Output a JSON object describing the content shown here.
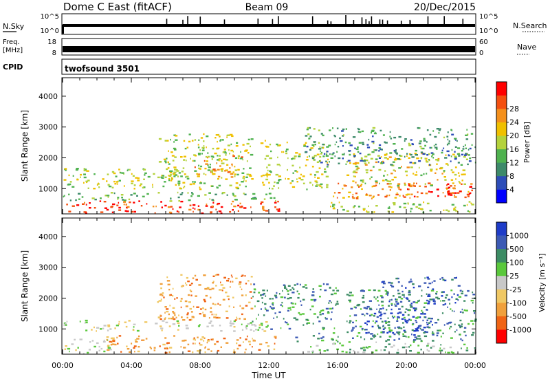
{
  "header": {
    "station": "Dome C East (fitACF)",
    "beam": "Beam 09",
    "date": "20/Dec/2015"
  },
  "summary_panels": {
    "nsky": {
      "label": "N.Sky",
      "left_ticks": [
        "10^5",
        "10^0"
      ],
      "right_ticks": [
        "10^5",
        "10^0"
      ],
      "right_label": "N.Search"
    },
    "freq": {
      "label_top": "Freq.",
      "label_bottom": "[MHz]",
      "left_ticks": [
        "18",
        "8"
      ],
      "right_ticks": [
        "60",
        "0"
      ],
      "right_label": "Nave"
    },
    "cpid": {
      "label": "CPID",
      "program": "twofsound 3501"
    }
  },
  "chart_data": [
    {
      "type": "heatmap",
      "name": "power",
      "xlabel": "",
      "ylabel": "Slant Range [km]",
      "x_ticks": [
        "00:00",
        "04:00",
        "08:00",
        "12:00",
        "16:00",
        "20:00",
        "00:00"
      ],
      "x_range_hours": [
        0,
        24
      ],
      "y_ticks": [
        1000,
        2000,
        3000,
        4000
      ],
      "y_range_km": [
        180,
        4600
      ],
      "colorbar": {
        "label": "Power [dB]",
        "ticks": [
          "4",
          "8",
          "12",
          "16",
          "20",
          "24",
          "28"
        ],
        "range": [
          0,
          32
        ],
        "colors": [
          "#0000ff",
          "#2d4db8",
          "#3d8a6a",
          "#4fb24f",
          "#b4d23c",
          "#f0c000",
          "#f4901c",
          "#f45010",
          "#ff0000"
        ]
      },
      "regions": [
        {
          "t0": 0.0,
          "t1": 12.8,
          "r0": 220,
          "r1": 620,
          "level": 28
        },
        {
          "t0": 0.0,
          "t1": 12.5,
          "r0": 620,
          "r1": 900,
          "level": 12
        },
        {
          "t0": 0.0,
          "t1": 7.0,
          "r0": 1000,
          "r1": 1700,
          "level": 16
        },
        {
          "t0": 5.5,
          "t1": 11.0,
          "r0": 1000,
          "r1": 2800,
          "level": 16
        },
        {
          "t0": 7.5,
          "t1": 10.5,
          "r0": 1400,
          "r1": 2100,
          "level": 22
        },
        {
          "t0": 11.5,
          "t1": 15.5,
          "r0": 1000,
          "r1": 2600,
          "level": 16
        },
        {
          "t0": 15.5,
          "t1": 24.0,
          "r0": 250,
          "r1": 600,
          "level": 16
        },
        {
          "t0": 15.5,
          "t1": 24.0,
          "r0": 700,
          "r1": 1200,
          "level": 24
        },
        {
          "t0": 16.5,
          "t1": 23.5,
          "r0": 1100,
          "r1": 2200,
          "level": 18
        },
        {
          "t0": 20.0,
          "t1": 24.0,
          "r0": 800,
          "r1": 1200,
          "level": 28
        },
        {
          "t0": 14.0,
          "t1": 24.0,
          "r0": 1800,
          "r1": 3000,
          "level": 10
        }
      ]
    },
    {
      "type": "heatmap",
      "name": "velocity",
      "xlabel": "Time UT",
      "ylabel": "Slant Range [km]",
      "x_ticks": [
        "00:00",
        "04:00",
        "08:00",
        "12:00",
        "16:00",
        "20:00",
        "00:00"
      ],
      "x_range_hours": [
        0,
        24
      ],
      "y_ticks": [
        1000,
        2000,
        3000,
        4000
      ],
      "y_range_km": [
        180,
        4600
      ],
      "colorbar": {
        "label": "Velocity [m s⁻¹]",
        "ticks": [
          "1000",
          "500",
          "100",
          "25",
          "-25",
          "-100",
          "-500",
          "-1000"
        ],
        "colors": [
          "#1e3cc8",
          "#3c5ab4",
          "#3c8c64",
          "#5ac83c",
          "#c8c8c8",
          "#f0c864",
          "#f0a03c",
          "#f06414",
          "#ff0000"
        ]
      },
      "regions": [
        {
          "t0": 0.0,
          "t1": 3.0,
          "r0": 220,
          "r1": 700,
          "band": 4
        },
        {
          "t0": 2.5,
          "t1": 12.5,
          "r0": 250,
          "r1": 800,
          "band": 6
        },
        {
          "t0": 0.0,
          "t1": 12.0,
          "r0": 950,
          "r1": 1300,
          "band": 4
        },
        {
          "t0": 5.5,
          "t1": 11.0,
          "r0": 1300,
          "r1": 2800,
          "band": 6
        },
        {
          "t0": 11.0,
          "t1": 16.0,
          "r0": 1000,
          "r1": 2500,
          "band": 2
        },
        {
          "t0": 13.5,
          "t1": 24.0,
          "r0": 600,
          "r1": 900,
          "band": 2
        },
        {
          "t0": 14.0,
          "t1": 24.0,
          "r0": 250,
          "r1": 600,
          "band": 3
        },
        {
          "t0": 17.5,
          "t1": 21.5,
          "r0": 800,
          "r1": 1700,
          "band": 0
        },
        {
          "t0": 16.5,
          "t1": 24.0,
          "r0": 900,
          "r1": 2300,
          "band": 2
        },
        {
          "t0": 18.5,
          "t1": 23.0,
          "r0": 1800,
          "r1": 2700,
          "band": 1
        }
      ]
    }
  ]
}
